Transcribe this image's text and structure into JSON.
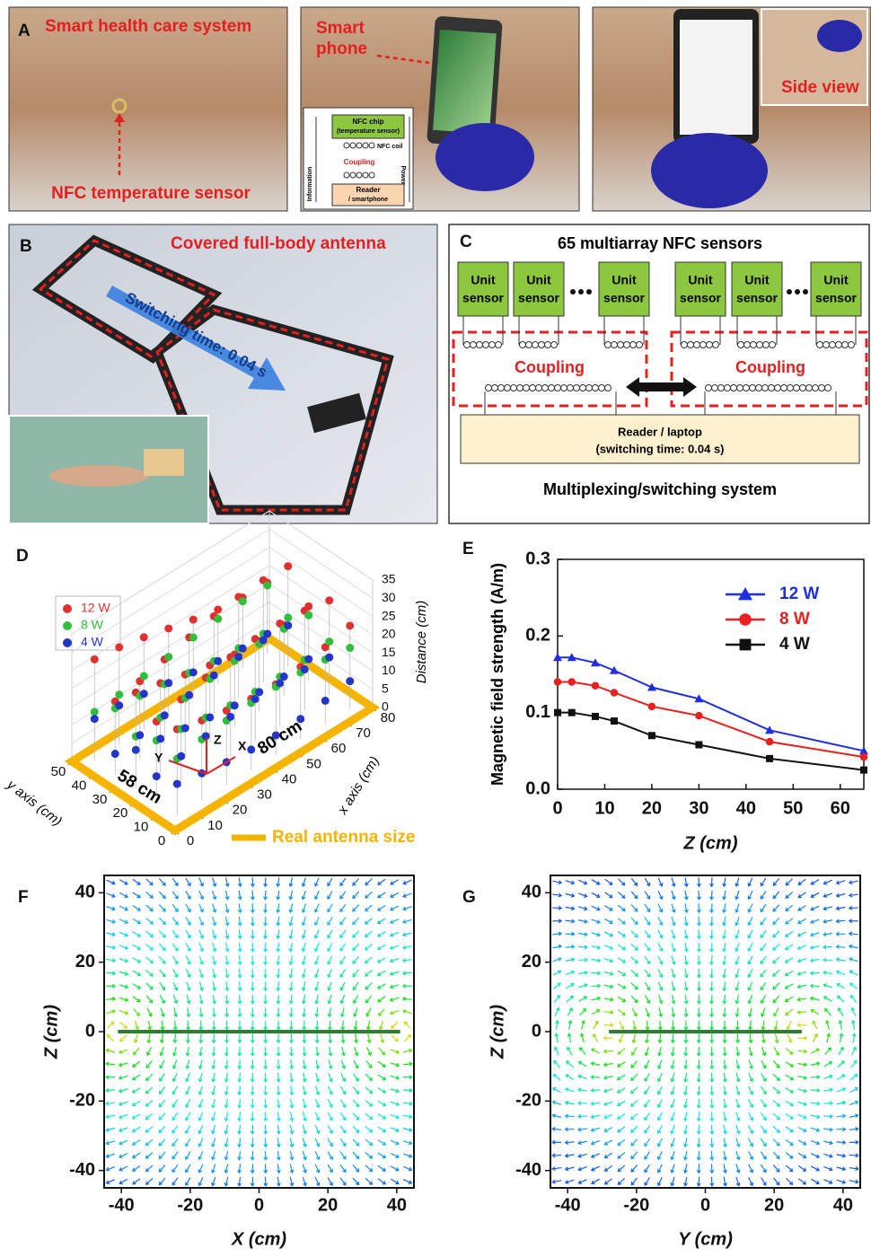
{
  "panel_a": {
    "letter": "A",
    "photo_1": {
      "title": "Smart health care system",
      "sensor": "NFC temperature sensor"
    },
    "photo_2": {
      "phone": [
        "Smart",
        "phone"
      ],
      "inset": {
        "chip": [
          "NFC chip",
          "(temperature sensor)"
        ],
        "coil": "NFC coil",
        "coupling": "Coupling",
        "reader": [
          "Reader",
          "/ smartphone"
        ],
        "information": "Information",
        "power": "Power"
      }
    },
    "photo_3": {
      "side_view": "Side view"
    }
  },
  "panel_b": {
    "letter": "B",
    "antenna": "Covered full-body antenna",
    "switching": "Switching time: 0.04 s"
  },
  "panel_c": {
    "letter": "C",
    "title": "65 multiarray NFC sensors",
    "units": [
      [
        "Unit",
        "sensor"
      ],
      [
        "Unit",
        "sensor"
      ],
      [
        "Unit",
        "sensor"
      ],
      [
        "Unit",
        "sensor"
      ],
      [
        "Unit",
        "sensor"
      ],
      [
        "Unit",
        "sensor"
      ]
    ],
    "coupling": [
      "Coupling",
      "Coupling"
    ],
    "reader": [
      "Reader / laptop",
      "(switching time: 0.04 s)"
    ],
    "system": "Multiplexing/switching system"
  },
  "chart_data": [
    {
      "type": "scatter3d",
      "panel": "D",
      "series": [
        {
          "name": "12 W",
          "color": "#e03030"
        },
        {
          "name": "8 W",
          "color": "#2fbf3a"
        },
        {
          "name": "4 W",
          "color": "#2436c8"
        }
      ],
      "xlabel": "x axis (cm)",
      "ylabel": "y axis (cm)",
      "zlabel": "Distance (cm)",
      "xlim": [
        0,
        80
      ],
      "ylim": [
        0,
        50
      ],
      "zlim": [
        0,
        35
      ],
      "xticks": [
        0,
        10,
        20,
        30,
        40,
        50,
        60,
        70,
        80
      ],
      "yticks": [
        0,
        10,
        20,
        30,
        40,
        50
      ],
      "zticks": [
        0,
        5,
        10,
        15,
        20,
        25,
        30,
        35
      ],
      "dimensions": [
        "58 cm",
        "80 cm"
      ],
      "axis_names": [
        "Z",
        "X",
        "Y"
      ],
      "antenna_label": "Real antenna size",
      "antenna_color": "#f5b400"
    },
    {
      "type": "line",
      "panel": "E",
      "xlabel": "Z (cm)",
      "ylabel": "Magnetic field strength (A/m)",
      "x": [
        0,
        3,
        8,
        12,
        20,
        30,
        45,
        65
      ],
      "series": [
        {
          "name": "12 W",
          "color": "#1f2fe0",
          "marker": "triangle",
          "values": [
            0.172,
            0.172,
            0.165,
            0.155,
            0.133,
            0.118,
            0.077,
            0.05
          ]
        },
        {
          "name": "8 W",
          "color": "#e82020",
          "marker": "circle",
          "values": [
            0.14,
            0.14,
            0.135,
            0.126,
            0.108,
            0.096,
            0.062,
            0.042
          ]
        },
        {
          "name": "4 W",
          "color": "#111111",
          "marker": "square",
          "values": [
            0.1,
            0.1,
            0.095,
            0.089,
            0.07,
            0.058,
            0.04,
            0.025
          ]
        }
      ],
      "xlim": [
        0,
        65
      ],
      "ylim": [
        0,
        0.3
      ],
      "xticks": [
        0,
        10,
        20,
        30,
        40,
        50,
        60
      ],
      "yticks": [
        {
          "value": 0,
          "label": "0.0"
        },
        0.1,
        0.2,
        0.3
      ]
    },
    {
      "type": "quiver",
      "panel": "F",
      "xlabel": "X (cm)",
      "ylabel": "Z (cm)",
      "xlim": [
        -45,
        45
      ],
      "ylim": [
        -45,
        45
      ],
      "xticks": [
        -40,
        -20,
        0,
        20,
        40
      ],
      "yticks": [
        -40,
        -20,
        0,
        20,
        40
      ],
      "antenna_span": [
        -41,
        41
      ]
    },
    {
      "type": "quiver",
      "panel": "G",
      "xlabel": "Y (cm)",
      "ylabel": "Z (cm)",
      "xlim": [
        -45,
        45
      ],
      "ylim": [
        -45,
        45
      ],
      "xticks": [
        -40,
        -20,
        0,
        20,
        40
      ],
      "yticks": [
        -40,
        -20,
        0,
        20,
        40
      ],
      "antenna_span": [
        -28,
        28
      ]
    }
  ]
}
